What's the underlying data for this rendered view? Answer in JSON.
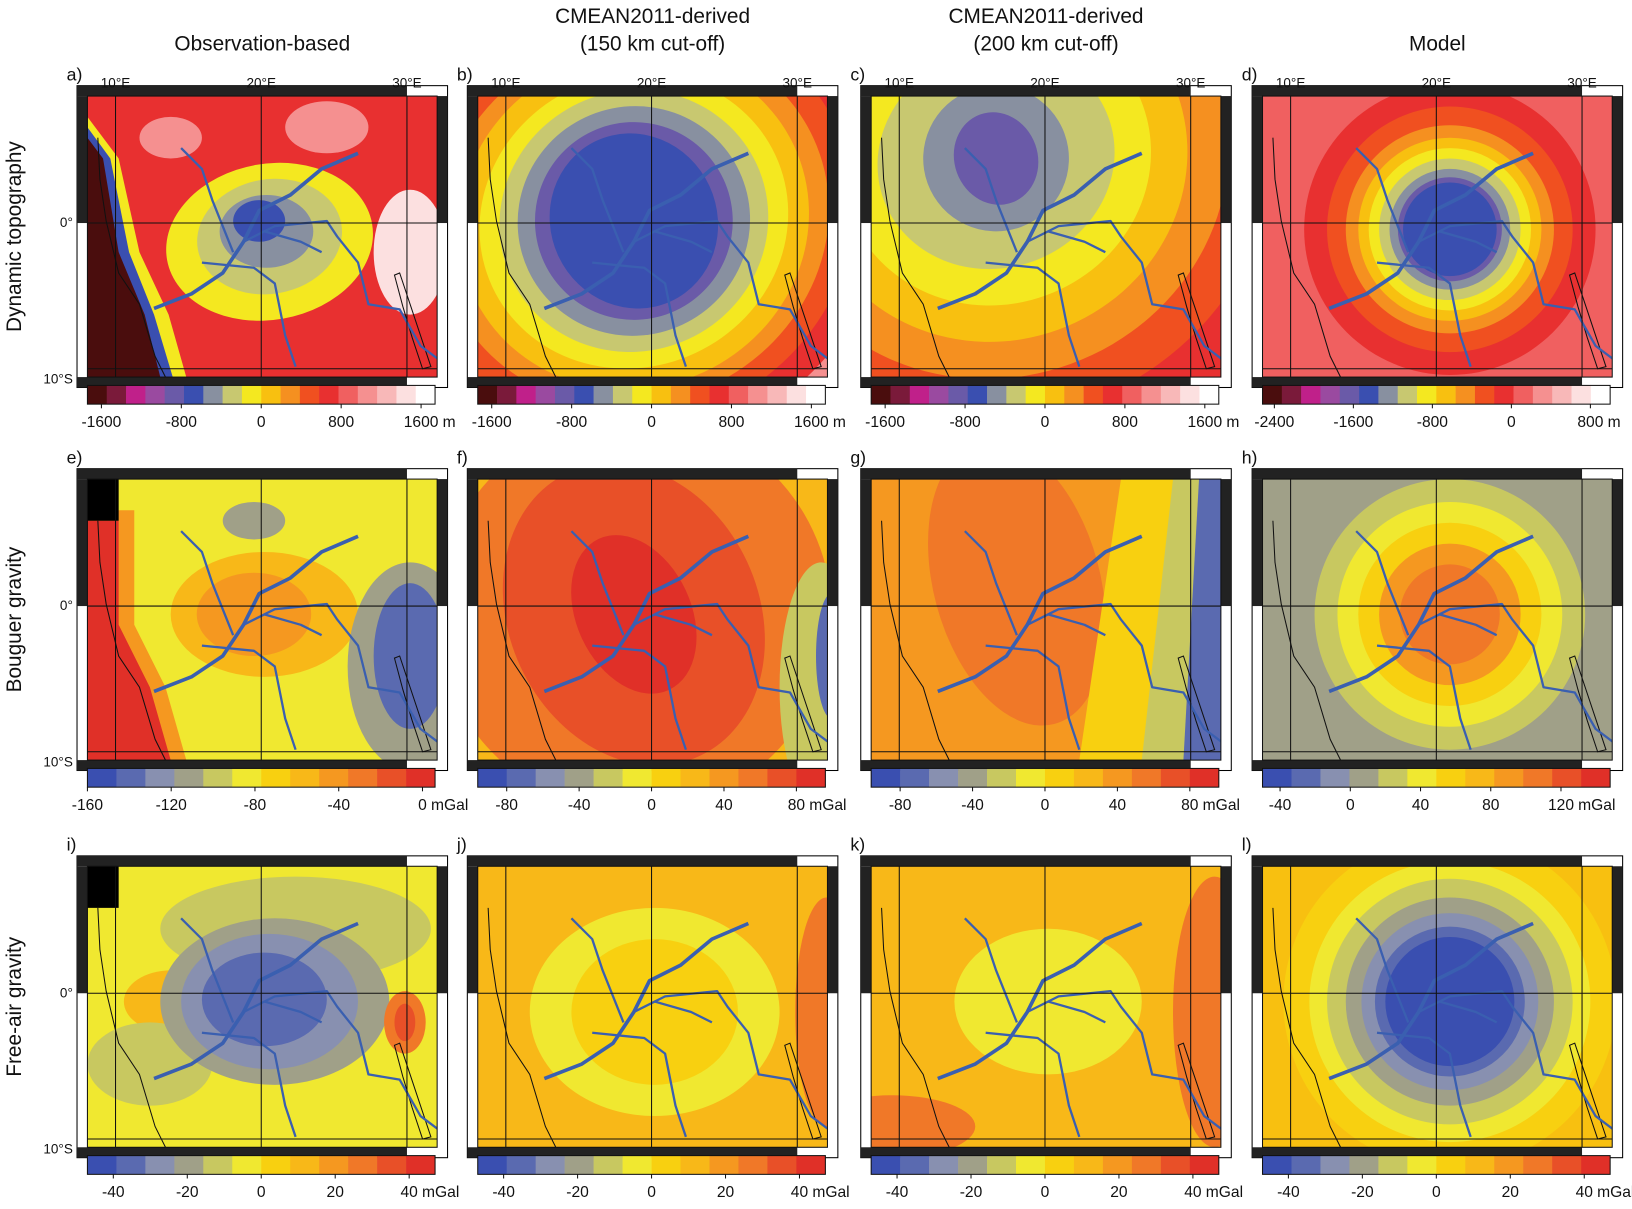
{
  "column_titles": [
    [
      "Observation-based"
    ],
    [
      "CMEAN2011-derived",
      "(150 km cut-off)"
    ],
    [
      "CMEAN2011-derived",
      "(200 km cut-off)"
    ],
    [
      "Model"
    ]
  ],
  "row_labels": [
    "Dynamic topography",
    "Bouguer gravity",
    "Free-air gravity"
  ],
  "longitude_labels": [
    "10°E",
    "20°E",
    "30°E"
  ],
  "latitude_labels": [
    "0°",
    "10°S"
  ],
  "palettes": {
    "topography": [
      "#4a0d0d",
      "#7a1a3a",
      "#c0208a",
      "#9a4aa0",
      "#6a5aa8",
      "#3a4fb0",
      "#8890a0",
      "#c8c870",
      "#f4e820",
      "#f8c010",
      "#f59020",
      "#f05020",
      "#e83030",
      "#f06060",
      "#f59090",
      "#f8b8b8",
      "#fce0e0",
      "#ffffff"
    ],
    "gravity": [
      "#3a4fb0",
      "#5a6ab0",
      "#8890b0",
      "#a0a088",
      "#c8c860",
      "#f0e830",
      "#f8d010",
      "#f8b818",
      "#f59820",
      "#f07828",
      "#e85028",
      "#e03028"
    ]
  },
  "panels": [
    {
      "letter": "a)",
      "colorbar": {
        "palette": "topography",
        "lim": [
          -1740,
          1740
        ],
        "ticks": [
          -1600,
          -800,
          0,
          800,
          1600
        ],
        "unit": "m"
      }
    },
    {
      "letter": "b)",
      "colorbar": {
        "palette": "topography",
        "lim": [
          -1740,
          1740
        ],
        "ticks": [
          -1600,
          -800,
          0,
          800,
          1600
        ],
        "unit": "m"
      }
    },
    {
      "letter": "c)",
      "colorbar": {
        "palette": "topography",
        "lim": [
          -1740,
          1740
        ],
        "ticks": [
          -1600,
          -800,
          0,
          800,
          1600
        ],
        "unit": "m"
      }
    },
    {
      "letter": "d)",
      "colorbar": {
        "palette": "topography",
        "lim": [
          -2520,
          1000
        ],
        "ticks": [
          -2400,
          -1600,
          -800,
          0,
          800
        ],
        "unit": "m"
      }
    },
    {
      "letter": "e)",
      "colorbar": {
        "palette": "gravity",
        "lim": [
          -160,
          6
        ],
        "ticks": [
          -160,
          -120,
          -80,
          -40,
          0
        ],
        "unit": "mGal"
      }
    },
    {
      "letter": "f)",
      "colorbar": {
        "palette": "gravity",
        "lim": [
          -96,
          96
        ],
        "ticks": [
          -80,
          -40,
          0,
          40,
          80
        ],
        "unit": "mGal"
      }
    },
    {
      "letter": "g)",
      "colorbar": {
        "palette": "gravity",
        "lim": [
          -96,
          96
        ],
        "ticks": [
          -80,
          -40,
          0,
          40,
          80
        ],
        "unit": "mGal"
      }
    },
    {
      "letter": "h)",
      "colorbar": {
        "palette": "gravity",
        "lim": [
          -50,
          148
        ],
        "ticks": [
          -40,
          0,
          40,
          80,
          120
        ],
        "unit": "mGal"
      }
    },
    {
      "letter": "i)",
      "colorbar": {
        "palette": "gravity",
        "lim": [
          -47,
          47
        ],
        "ticks": [
          -40,
          -20,
          0,
          20,
          40
        ],
        "unit": "mGal"
      }
    },
    {
      "letter": "j)",
      "colorbar": {
        "palette": "gravity",
        "lim": [
          -47,
          47
        ],
        "ticks": [
          -40,
          -20,
          0,
          20,
          40
        ],
        "unit": "mGal"
      }
    },
    {
      "letter": "k)",
      "colorbar": {
        "palette": "gravity",
        "lim": [
          -47,
          47
        ],
        "ticks": [
          -40,
          -20,
          0,
          20,
          40
        ],
        "unit": "mGal"
      }
    },
    {
      "letter": "l)",
      "colorbar": {
        "palette": "gravity",
        "lim": [
          -47,
          47
        ],
        "ticks": [
          -40,
          -20,
          0,
          20,
          40
        ],
        "unit": "mGal"
      }
    }
  ]
}
